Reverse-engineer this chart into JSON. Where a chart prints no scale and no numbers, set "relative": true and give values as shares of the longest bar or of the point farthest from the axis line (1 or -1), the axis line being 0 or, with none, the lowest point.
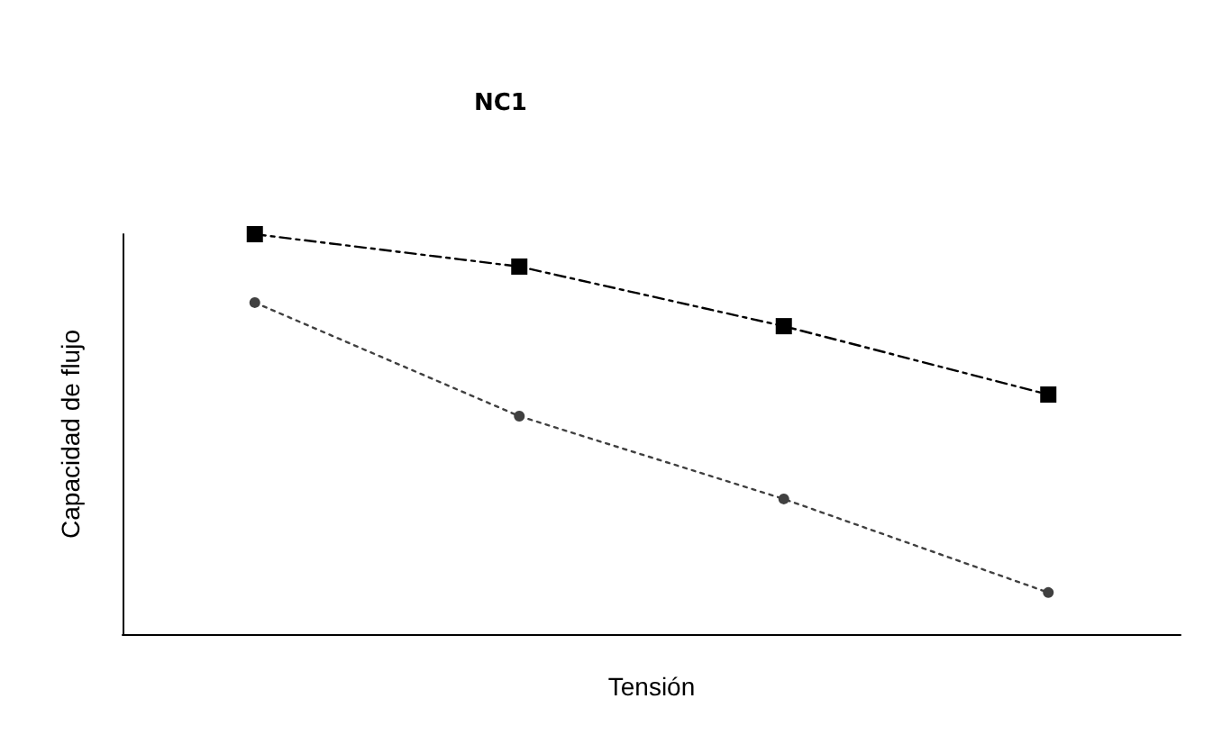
{
  "chart_data": {
    "type": "line",
    "title": "NC1",
    "xlabel": "Tensión",
    "ylabel": "Capacidad de flujo",
    "relative": true,
    "grid": false,
    "categories": [
      null,
      null,
      null,
      null
    ],
    "series": [
      {
        "color": "#000000",
        "marker": "square",
        "line_style": "dashed",
        "values": [
          1,
          0.919,
          0.77,
          0.599
        ]
      },
      {
        "color": "#404040",
        "marker": "circle",
        "line_style": "dotted",
        "values": [
          0.829,
          0.545,
          0.338,
          0.104
        ]
      }
    ]
  }
}
